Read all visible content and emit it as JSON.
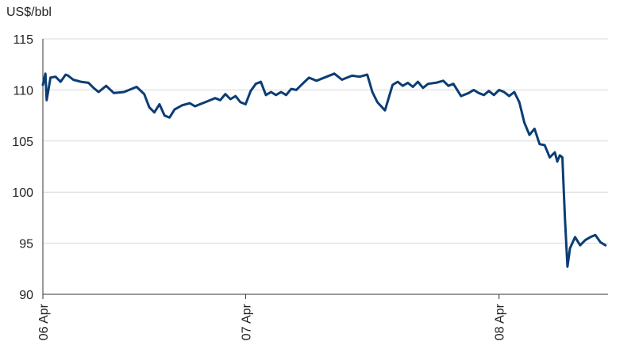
{
  "chart_data": {
    "type": "line",
    "title": "",
    "ylabel": "US$/bbl",
    "xlabel": "",
    "ylim": [
      90,
      115
    ],
    "yticks": [
      90,
      95,
      100,
      105,
      110,
      115
    ],
    "xlim": [
      0,
      2.23
    ],
    "xticks": [
      {
        "label": "06 Apr",
        "value": 0
      },
      {
        "label": "07 Apr",
        "value": 0.8
      },
      {
        "label": "08 Apr",
        "value": 1.8
      }
    ],
    "grid": true,
    "legend": "none",
    "line_color": "#0b3d75",
    "series": [
      {
        "name": "",
        "x": [
          0,
          0.01,
          0.015,
          0.03,
          0.05,
          0.07,
          0.09,
          0.1,
          0.12,
          0.15,
          0.18,
          0.2,
          0.22,
          0.25,
          0.28,
          0.32,
          0.37,
          0.4,
          0.42,
          0.44,
          0.46,
          0.48,
          0.5,
          0.52,
          0.55,
          0.58,
          0.6,
          0.62,
          0.65,
          0.68,
          0.7,
          0.72,
          0.74,
          0.76,
          0.78,
          0.8,
          0.82,
          0.84,
          0.86,
          0.88,
          0.9,
          0.92,
          0.94,
          0.96,
          0.98,
          1.0,
          1.02,
          1.05,
          1.08,
          1.1,
          1.12,
          1.15,
          1.18,
          1.2,
          1.22,
          1.25,
          1.28,
          1.3,
          1.32,
          1.35,
          1.38,
          1.4,
          1.42,
          1.44,
          1.46,
          1.48,
          1.5,
          1.52,
          1.55,
          1.58,
          1.6,
          1.62,
          1.65,
          1.68,
          1.7,
          1.72,
          1.74,
          1.76,
          1.78,
          1.8,
          1.82,
          1.84,
          1.86,
          1.88,
          1.9,
          1.92,
          1.94,
          1.96,
          1.98,
          2.0,
          2.02,
          2.03,
          2.04,
          2.05,
          2.06,
          2.07,
          2.08,
          2.1,
          2.12,
          2.14,
          2.16,
          2.18,
          2.2,
          2.22
        ],
        "y": [
          110.5,
          111.6,
          109.0,
          111.2,
          111.3,
          110.8,
          111.5,
          111.4,
          111.0,
          110.8,
          110.7,
          110.2,
          109.8,
          110.4,
          109.7,
          109.8,
          110.3,
          109.6,
          108.3,
          107.8,
          108.6,
          107.5,
          107.3,
          108.1,
          108.5,
          108.7,
          108.4,
          108.6,
          108.9,
          109.2,
          109.0,
          109.6,
          109.1,
          109.4,
          108.8,
          108.6,
          109.9,
          110.6,
          110.8,
          109.5,
          109.8,
          109.5,
          109.8,
          109.5,
          110.1,
          110.0,
          110.5,
          111.2,
          110.9,
          111.1,
          111.3,
          111.6,
          111.0,
          111.2,
          111.4,
          111.3,
          111.5,
          109.8,
          108.8,
          108.0,
          110.5,
          110.8,
          110.4,
          110.7,
          110.3,
          110.8,
          110.2,
          110.6,
          110.7,
          110.9,
          110.4,
          110.6,
          109.4,
          109.7,
          110.0,
          109.7,
          109.5,
          109.9,
          109.5,
          110.0,
          109.8,
          109.4,
          109.8,
          108.8,
          106.8,
          105.6,
          106.2,
          104.7,
          104.6,
          103.4,
          103.9,
          103.0,
          103.6,
          103.4,
          97.5,
          92.7,
          94.5,
          95.6,
          94.8,
          95.3,
          95.6,
          95.8,
          95.1,
          94.8
        ]
      }
    ]
  }
}
